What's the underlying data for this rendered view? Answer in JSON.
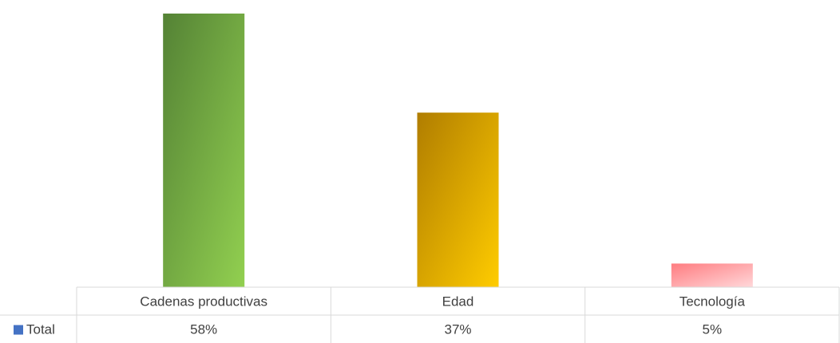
{
  "chart_data": {
    "type": "bar",
    "categories": [
      "Cadenas productivas",
      "Edad",
      "Tecnología"
    ],
    "values": [
      58,
      37,
      5
    ],
    "value_labels": [
      "58%",
      "37%",
      "5%"
    ],
    "series": [
      {
        "name": "Total",
        "values": [
          58,
          37,
          5
        ]
      }
    ],
    "ylim": [
      0,
      58
    ],
    "data_table": true,
    "gridlines": false,
    "colors": {
      "bars": [
        {
          "dark": "#548235",
          "light": "#92d050"
        },
        {
          "dark": "#b07d00",
          "light": "#ffcc00"
        },
        {
          "dark": "#ff7c80",
          "light": "#ffd8da"
        }
      ],
      "legend_key": "#4472c4",
      "table_border": "#d9d9d9",
      "text": "#404040"
    }
  }
}
